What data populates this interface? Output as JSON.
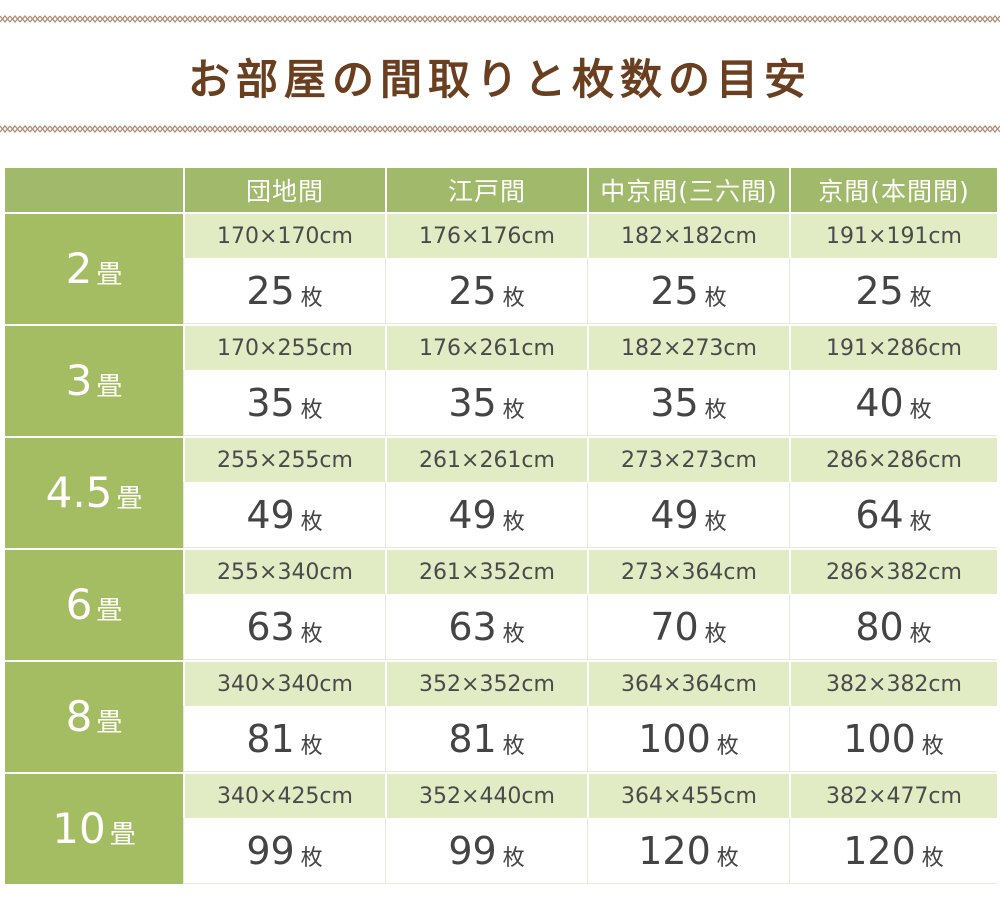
{
  "title": "お部屋の間取りと枚数の目安",
  "header": {
    "columns": [
      "団地間",
      "江戸間",
      "中京間(三六間)",
      "京間(本間間)"
    ]
  },
  "count_unit": "枚",
  "rows": [
    {
      "size": "2",
      "unit": "畳",
      "dims": [
        "170×170cm",
        "176×176cm",
        "182×182cm",
        "191×191cm"
      ],
      "counts": [
        "25",
        "25",
        "25",
        "25"
      ]
    },
    {
      "size": "3",
      "unit": "畳",
      "dims": [
        "170×255cm",
        "176×261cm",
        "182×273cm",
        "191×286cm"
      ],
      "counts": [
        "35",
        "35",
        "35",
        "40"
      ]
    },
    {
      "size": "4.5",
      "unit": "畳",
      "dims": [
        "255×255cm",
        "261×261cm",
        "273×273cm",
        "286×286cm"
      ],
      "counts": [
        "49",
        "49",
        "49",
        "64"
      ]
    },
    {
      "size": "6",
      "unit": "畳",
      "dims": [
        "255×340cm",
        "261×352cm",
        "273×364cm",
        "286×382cm"
      ],
      "counts": [
        "63",
        "63",
        "70",
        "80"
      ]
    },
    {
      "size": "8",
      "unit": "畳",
      "dims": [
        "340×340cm",
        "352×352cm",
        "364×364cm",
        "382×382cm"
      ],
      "counts": [
        "81",
        "81",
        "100",
        "100"
      ]
    },
    {
      "size": "10",
      "unit": "畳",
      "dims": [
        "340×425cm",
        "352×440cm",
        "364×455cm",
        "382×477cm"
      ],
      "counts": [
        "99",
        "99",
        "120",
        "120"
      ]
    }
  ],
  "colors": {
    "title": "#6a3f1f",
    "zigzag": "#b08c72",
    "header_bg": "#a0b96a",
    "dim_bg": "#e2ecc4"
  }
}
